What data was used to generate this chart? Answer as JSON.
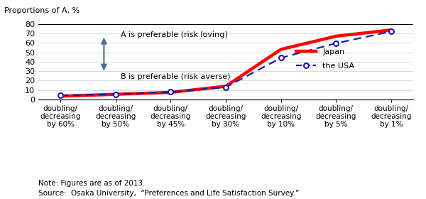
{
  "x_labels": [
    "doubling/\ndecreasing\nby 60%",
    "doubling/\ndecreasing\nby 50%",
    "doubling/\ndecreasing\nby 45%",
    "doubling/\ndecreasing\nby 30%",
    "doubling/\ndecreasing\nby 10%",
    "doubling/\ndecreasing\nby 5%",
    "doubling/\ndecreasing\nby 1%"
  ],
  "japan_values": [
    3.5,
    5.5,
    7.5,
    14.0,
    53.0,
    67.0,
    73.5
  ],
  "usa_values": [
    4.5,
    5.5,
    8.0,
    13.0,
    44.0,
    59.5,
    72.0
  ],
  "ylabel": "Proportions of A, %",
  "ylim": [
    0,
    80
  ],
  "yticks": [
    0,
    10,
    20,
    30,
    40,
    50,
    60,
    70,
    80
  ],
  "japan_color": "#FF0000",
  "usa_color": "#1A1AB4",
  "japan_label": "Japan",
  "usa_label": "the USA",
  "annotation_top": "A is preferable (risk loving)",
  "annotation_bottom": "B is preferable (risk averse)",
  "arrow_color": "#4F6E8C",
  "note_line1": "Note: Figures are as of 2013.",
  "note_line2": "Source:  Osaka University,  “Preferences and Life Satisfaction Survey.”"
}
